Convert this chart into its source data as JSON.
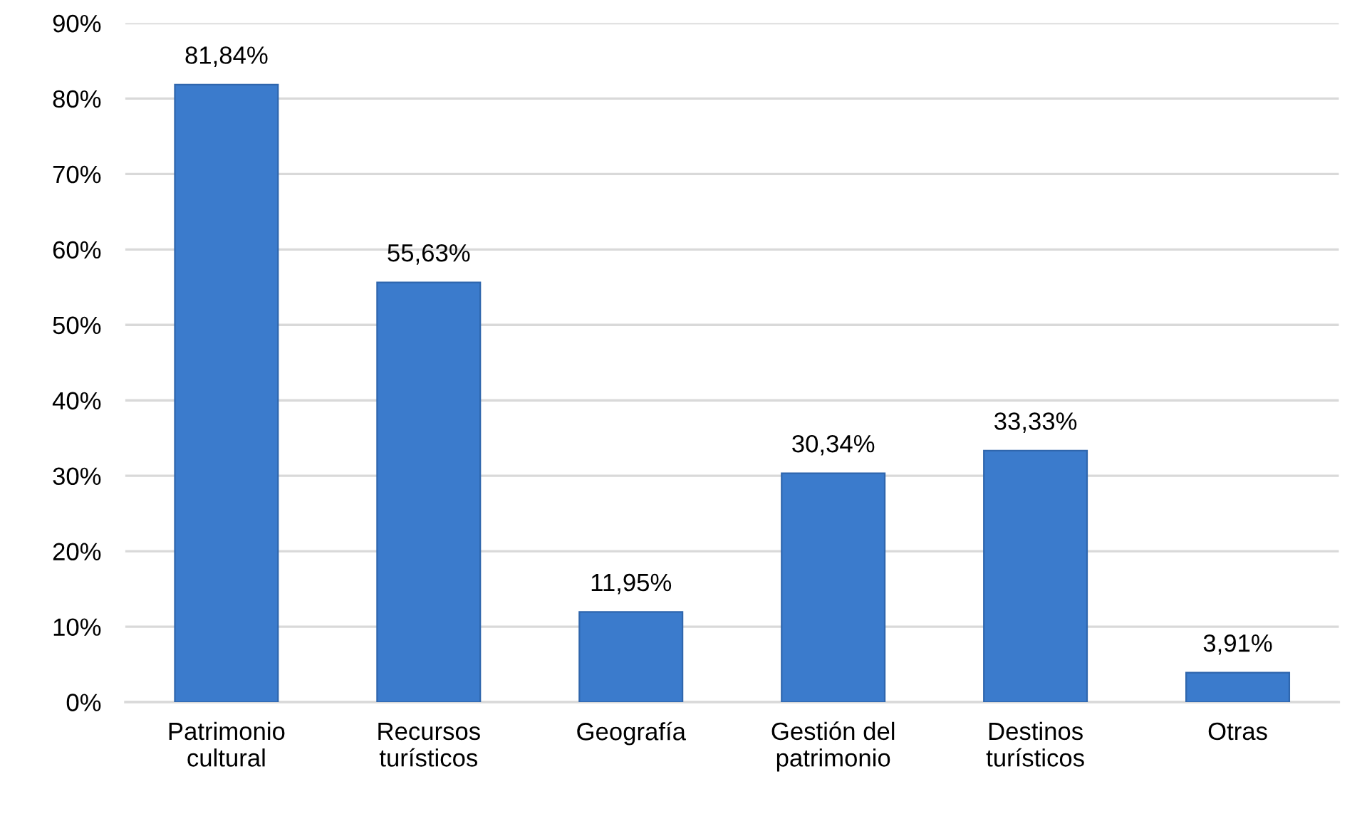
{
  "chart_data": {
    "type": "bar",
    "categories": [
      "Patrimonio\ncultural",
      "Recursos\nturísticos",
      "Geografía",
      "Gestión del\npatrimonio",
      "Destinos\nturísticos",
      "Otras"
    ],
    "values": [
      81.84,
      55.63,
      11.95,
      30.34,
      33.33,
      3.91
    ],
    "value_labels": [
      "81,84%",
      "55,63%",
      "11,95%",
      "30,34%",
      "33,33%",
      "3,91%"
    ],
    "color": "#3b7bcc",
    "ylim": [
      0,
      90
    ],
    "yticks": [
      {
        "value": 0,
        "label": "0%"
      },
      {
        "value": 10,
        "label": "10%"
      },
      {
        "value": 20,
        "label": "20%"
      },
      {
        "value": 30,
        "label": "30%"
      },
      {
        "value": 40,
        "label": "40%"
      },
      {
        "value": 50,
        "label": "50%"
      },
      {
        "value": 60,
        "label": "60%"
      },
      {
        "value": 70,
        "label": "70%"
      },
      {
        "value": 80,
        "label": "80%"
      },
      {
        "value": 90,
        "label": "90%"
      }
    ],
    "grid": "y",
    "legend": false
  }
}
